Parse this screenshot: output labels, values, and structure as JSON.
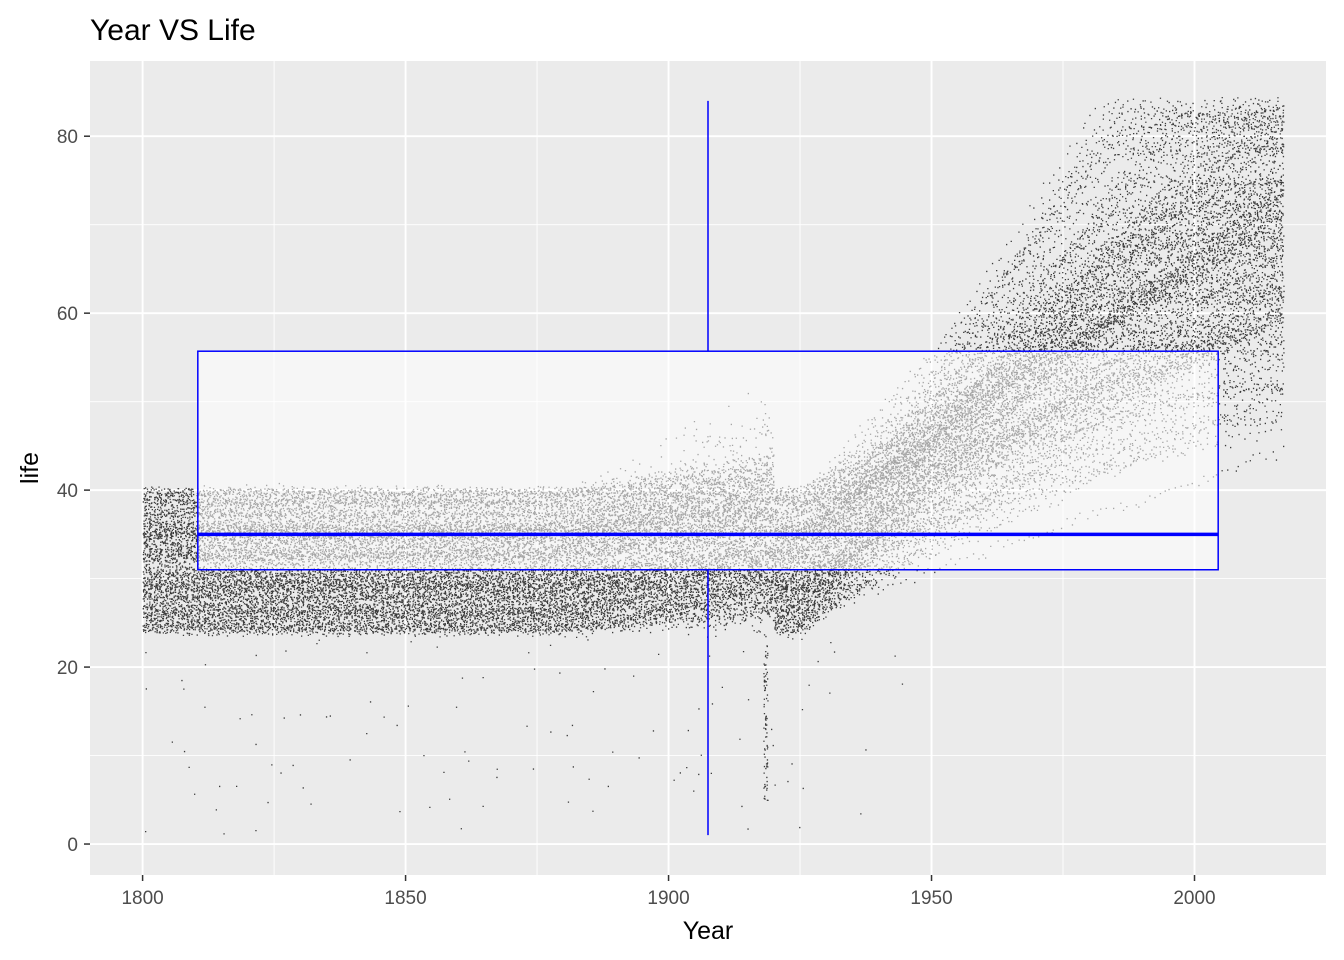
{
  "chart_data": {
    "type": "scatter",
    "title": "Year VS Life",
    "xlabel": "Year",
    "ylabel": "life",
    "xlim": [
      1790,
      2025
    ],
    "ylim": [
      -3.5,
      88.5
    ],
    "x_ticks": [
      1800,
      1850,
      1900,
      1950,
      2000
    ],
    "x_tick_labels": [
      "1800",
      "1850",
      "1900",
      "1950",
      "2000"
    ],
    "y_ticks": [
      0,
      20,
      40,
      60,
      80
    ],
    "y_tick_labels": [
      "0",
      "20",
      "40",
      "60",
      "80"
    ],
    "grid": true,
    "panel_color": "#ebebeb",
    "point_color": "#000000",
    "box_color": "#0000ff",
    "points_description": "Dense scatter of life expectancy by year (1800-2016): values cluster around 25-40 from 1800 to about 1920, then rise steadily to roughly 45-84 by 2016; isolated low outliers near 1918.",
    "boxplot": {
      "x_center": 1907.5,
      "x_range": [
        1810.5,
        2004.5
      ],
      "min": 1,
      "q1": 31,
      "median": 35,
      "q3": 55.7,
      "max": 84
    }
  }
}
